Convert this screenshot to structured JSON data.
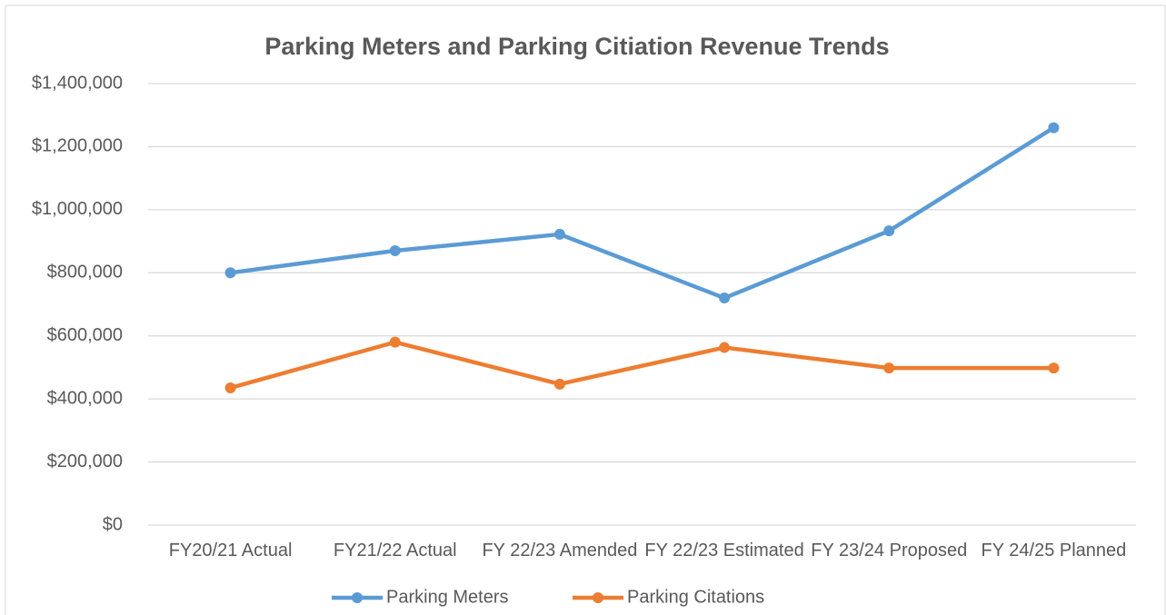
{
  "chart_data": {
    "type": "line",
    "title": "Parking Meters and Parking Citiation Revenue Trends",
    "categories": [
      "FY20/21 Actual",
      "FY21/22 Actual",
      "FY 22/23 Amended",
      "FY 22/23 Estimated",
      "FY 23/24 Proposed",
      "FY 24/25 Planned"
    ],
    "series": [
      {
        "name": "Parking Meters",
        "color": "#5b9bd5",
        "values": [
          800000,
          870000,
          922000,
          720000,
          933000,
          1260000
        ]
      },
      {
        "name": "Parking Citations",
        "color": "#ed7d31",
        "values": [
          435000,
          580000,
          447000,
          563000,
          498000,
          498000
        ]
      }
    ],
    "ylim": [
      0,
      1400000
    ],
    "yticks": [
      {
        "value": 0,
        "label": "$0"
      },
      {
        "value": 200000,
        "label": "$200,000"
      },
      {
        "value": 400000,
        "label": "$400,000"
      },
      {
        "value": 600000,
        "label": "$600,000"
      },
      {
        "value": 800000,
        "label": "$800,000"
      },
      {
        "value": 1000000,
        "label": "$1,000,000"
      },
      {
        "value": 1200000,
        "label": "$1,200,000"
      },
      {
        "value": 1400000,
        "label": "$1,400,000"
      }
    ],
    "grid": true,
    "legend": "bottom"
  }
}
